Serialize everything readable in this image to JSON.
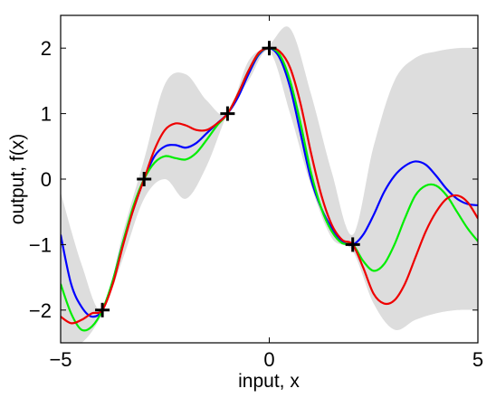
{
  "chart_data": {
    "type": "line",
    "xlabel": "input, x",
    "ylabel": "output, f(x)",
    "xlim": [
      -5,
      5
    ],
    "ylim": [
      -2.5,
      2.5
    ],
    "x_ticks": [
      -5,
      0,
      5
    ],
    "y_ticks": [
      -2,
      -1,
      0,
      1,
      2
    ],
    "x_tick_labels": [
      "−5",
      "0",
      "5"
    ],
    "y_tick_labels": [
      "−2",
      "−1",
      "0",
      "1",
      "2"
    ],
    "grid": false,
    "legend": "none",
    "observations": {
      "marker": "plus",
      "color": "#000000",
      "points": [
        [
          -4,
          -2
        ],
        [
          -3,
          0
        ],
        [
          -1,
          1
        ],
        [
          0,
          2
        ],
        [
          2,
          -1
        ]
      ]
    },
    "confidence_band": {
      "color": "#dddddd",
      "x": [
        -5,
        -4.5,
        -4,
        -3.5,
        -3,
        -2.5,
        -2,
        -1.5,
        -1,
        -0.5,
        0,
        0.5,
        1,
        1.5,
        2,
        2.5,
        3,
        3.5,
        4,
        4.5,
        5
      ],
      "upper": [
        -0.2,
        -1.3,
        -2.0,
        -0.8,
        0.3,
        1.45,
        1.6,
        1.2,
        1.0,
        1.8,
        2.05,
        2.3,
        1.3,
        0.1,
        -0.85,
        0.5,
        1.5,
        1.85,
        1.95,
        2.0,
        2.0
      ],
      "lower": [
        -2.5,
        -2.5,
        -2.05,
        -1.2,
        -0.3,
        0.0,
        -0.3,
        0.2,
        1.0,
        1.5,
        1.95,
        1.0,
        -0.1,
        -0.9,
        -1.1,
        -1.9,
        -2.3,
        -2.15,
        -2.05,
        -2.0,
        -2.0
      ]
    },
    "series": [
      {
        "color": "#0000ff",
        "x": [
          -5,
          -4.75,
          -4.5,
          -4.25,
          -4,
          -3.75,
          -3.5,
          -3.25,
          -3,
          -2.75,
          -2.5,
          -2.25,
          -2,
          -1.75,
          -1.5,
          -1.25,
          -1,
          -0.75,
          -0.5,
          -0.25,
          0,
          0.25,
          0.5,
          0.75,
          1,
          1.25,
          1.5,
          1.75,
          2,
          2.25,
          2.5,
          2.75,
          3,
          3.25,
          3.5,
          3.75,
          4,
          4.25,
          4.5,
          4.75,
          5
        ],
        "y": [
          -0.85,
          -1.6,
          -1.95,
          -2.1,
          -2.0,
          -1.55,
          -0.95,
          -0.45,
          0.0,
          0.35,
          0.5,
          0.52,
          0.48,
          0.55,
          0.7,
          0.85,
          1.0,
          1.25,
          1.6,
          1.9,
          2.0,
          1.85,
          1.4,
          0.7,
          0.0,
          -0.45,
          -0.75,
          -0.95,
          -1.0,
          -0.85,
          -0.55,
          -0.2,
          0.05,
          0.2,
          0.27,
          0.22,
          0.05,
          -0.15,
          -0.3,
          -0.38,
          -0.4
        ]
      },
      {
        "color": "#00ee00",
        "x": [
          -5,
          -4.75,
          -4.5,
          -4.25,
          -4,
          -3.75,
          -3.5,
          -3.25,
          -3,
          -2.75,
          -2.5,
          -2.25,
          -2,
          -1.75,
          -1.5,
          -1.25,
          -1,
          -0.75,
          -0.5,
          -0.25,
          0,
          0.25,
          0.5,
          0.75,
          1,
          1.25,
          1.5,
          1.75,
          2,
          2.25,
          2.5,
          2.75,
          3,
          3.25,
          3.5,
          3.75,
          4,
          4.25,
          4.5,
          4.75,
          5
        ],
        "y": [
          -1.6,
          -2.05,
          -2.3,
          -2.25,
          -2.0,
          -1.55,
          -0.95,
          -0.4,
          0.0,
          0.25,
          0.35,
          0.32,
          0.3,
          0.4,
          0.6,
          0.82,
          1.0,
          1.3,
          1.65,
          1.92,
          2.0,
          1.9,
          1.5,
          0.85,
          0.1,
          -0.45,
          -0.8,
          -0.98,
          -1.0,
          -1.25,
          -1.4,
          -1.3,
          -1.0,
          -0.6,
          -0.25,
          -0.1,
          -0.1,
          -0.25,
          -0.5,
          -0.75,
          -0.95
        ]
      },
      {
        "color": "#ee0000",
        "x": [
          -5,
          -4.75,
          -4.5,
          -4.25,
          -4,
          -3.75,
          -3.5,
          -3.25,
          -3,
          -2.75,
          -2.5,
          -2.25,
          -2,
          -1.75,
          -1.5,
          -1.25,
          -1,
          -0.75,
          -0.5,
          -0.25,
          0,
          0.25,
          0.5,
          0.75,
          1,
          1.25,
          1.5,
          1.75,
          2,
          2.25,
          2.5,
          2.75,
          3,
          3.25,
          3.5,
          3.75,
          4,
          4.25,
          4.5,
          4.75,
          5
        ],
        "y": [
          -2.1,
          -2.2,
          -2.15,
          -2.05,
          -2.0,
          -1.6,
          -1.0,
          -0.45,
          0.0,
          0.45,
          0.75,
          0.85,
          0.82,
          0.75,
          0.75,
          0.85,
          1.0,
          1.3,
          1.65,
          1.93,
          2.0,
          1.95,
          1.7,
          1.15,
          0.4,
          -0.25,
          -0.7,
          -0.93,
          -1.0,
          -1.35,
          -1.75,
          -1.9,
          -1.85,
          -1.6,
          -1.2,
          -0.8,
          -0.5,
          -0.3,
          -0.25,
          -0.35,
          -0.6
        ]
      }
    ]
  }
}
